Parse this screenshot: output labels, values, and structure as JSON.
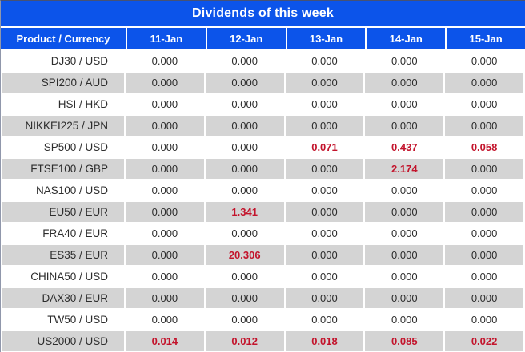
{
  "title": "Dividends of this week",
  "table": {
    "columns": [
      "Product / Currency",
      "11-Jan",
      "12-Jan",
      "13-Jan",
      "14-Jan",
      "15-Jan"
    ],
    "rows": [
      {
        "product": "DJ30 / USD",
        "values": [
          "0.000",
          "0.000",
          "0.000",
          "0.000",
          "0.000"
        ],
        "highlighted": [
          false,
          false,
          false,
          false,
          false
        ]
      },
      {
        "product": "SPI200 / AUD",
        "values": [
          "0.000",
          "0.000",
          "0.000",
          "0.000",
          "0.000"
        ],
        "highlighted": [
          false,
          false,
          false,
          false,
          false
        ]
      },
      {
        "product": "HSI / HKD",
        "values": [
          "0.000",
          "0.000",
          "0.000",
          "0.000",
          "0.000"
        ],
        "highlighted": [
          false,
          false,
          false,
          false,
          false
        ]
      },
      {
        "product": "NIKKEI225 / JPN",
        "values": [
          "0.000",
          "0.000",
          "0.000",
          "0.000",
          "0.000"
        ],
        "highlighted": [
          false,
          false,
          false,
          false,
          false
        ]
      },
      {
        "product": "SP500 / USD",
        "values": [
          "0.000",
          "0.000",
          "0.071",
          "0.437",
          "0.058"
        ],
        "highlighted": [
          false,
          false,
          true,
          true,
          true
        ]
      },
      {
        "product": "FTSE100 / GBP",
        "values": [
          "0.000",
          "0.000",
          "0.000",
          "2.174",
          "0.000"
        ],
        "highlighted": [
          false,
          false,
          false,
          true,
          false
        ]
      },
      {
        "product": "NAS100 / USD",
        "values": [
          "0.000",
          "0.000",
          "0.000",
          "0.000",
          "0.000"
        ],
        "highlighted": [
          false,
          false,
          false,
          false,
          false
        ]
      },
      {
        "product": "EU50 / EUR",
        "values": [
          "0.000",
          "1.341",
          "0.000",
          "0.000",
          "0.000"
        ],
        "highlighted": [
          false,
          true,
          false,
          false,
          false
        ]
      },
      {
        "product": "FRA40 / EUR",
        "values": [
          "0.000",
          "0.000",
          "0.000",
          "0.000",
          "0.000"
        ],
        "highlighted": [
          false,
          false,
          false,
          false,
          false
        ]
      },
      {
        "product": "ES35 / EUR",
        "values": [
          "0.000",
          "20.306",
          "0.000",
          "0.000",
          "0.000"
        ],
        "highlighted": [
          false,
          true,
          false,
          false,
          false
        ]
      },
      {
        "product": "CHINA50 / USD",
        "values": [
          "0.000",
          "0.000",
          "0.000",
          "0.000",
          "0.000"
        ],
        "highlighted": [
          false,
          false,
          false,
          false,
          false
        ]
      },
      {
        "product": "DAX30 / EUR",
        "values": [
          "0.000",
          "0.000",
          "0.000",
          "0.000",
          "0.000"
        ],
        "highlighted": [
          false,
          false,
          false,
          false,
          false
        ]
      },
      {
        "product": "TW50 / USD",
        "values": [
          "0.000",
          "0.000",
          "0.000",
          "0.000",
          "0.000"
        ],
        "highlighted": [
          false,
          false,
          false,
          false,
          false
        ]
      },
      {
        "product": "US2000 / USD",
        "values": [
          "0.014",
          "0.012",
          "0.018",
          "0.085",
          "0.022"
        ],
        "highlighted": [
          true,
          true,
          true,
          true,
          true
        ]
      }
    ]
  },
  "colors": {
    "header_bg": "#0c54ea",
    "header_text": "#ffffff",
    "row_bg": "#ffffff",
    "row_alt_bg": "#d4d4d4",
    "text": "#2d2d2d",
    "highlight": "#c3142c"
  },
  "chart_data": {
    "type": "table",
    "title": "Dividends of this week",
    "columns": [
      "Product / Currency",
      "11-Jan",
      "12-Jan",
      "13-Jan",
      "14-Jan",
      "15-Jan"
    ],
    "series": [
      {
        "name": "DJ30 / USD",
        "values": [
          0.0,
          0.0,
          0.0,
          0.0,
          0.0
        ]
      },
      {
        "name": "SPI200 / AUD",
        "values": [
          0.0,
          0.0,
          0.0,
          0.0,
          0.0
        ]
      },
      {
        "name": "HSI / HKD",
        "values": [
          0.0,
          0.0,
          0.0,
          0.0,
          0.0
        ]
      },
      {
        "name": "NIKKEI225 / JPN",
        "values": [
          0.0,
          0.0,
          0.0,
          0.0,
          0.0
        ]
      },
      {
        "name": "SP500 / USD",
        "values": [
          0.0,
          0.0,
          0.071,
          0.437,
          0.058
        ]
      },
      {
        "name": "FTSE100 / GBP",
        "values": [
          0.0,
          0.0,
          0.0,
          2.174,
          0.0
        ]
      },
      {
        "name": "NAS100 / USD",
        "values": [
          0.0,
          0.0,
          0.0,
          0.0,
          0.0
        ]
      },
      {
        "name": "EU50 / EUR",
        "values": [
          0.0,
          1.341,
          0.0,
          0.0,
          0.0
        ]
      },
      {
        "name": "FRA40 / EUR",
        "values": [
          0.0,
          0.0,
          0.0,
          0.0,
          0.0
        ]
      },
      {
        "name": "ES35 / EUR",
        "values": [
          0.0,
          20.306,
          0.0,
          0.0,
          0.0
        ]
      },
      {
        "name": "CHINA50 / USD",
        "values": [
          0.0,
          0.0,
          0.0,
          0.0,
          0.0
        ]
      },
      {
        "name": "DAX30 / EUR",
        "values": [
          0.0,
          0.0,
          0.0,
          0.0,
          0.0
        ]
      },
      {
        "name": "TW50 / USD",
        "values": [
          0.0,
          0.0,
          0.0,
          0.0,
          0.0
        ]
      },
      {
        "name": "US2000 / USD",
        "values": [
          0.014,
          0.012,
          0.018,
          0.085,
          0.022
        ]
      }
    ]
  }
}
